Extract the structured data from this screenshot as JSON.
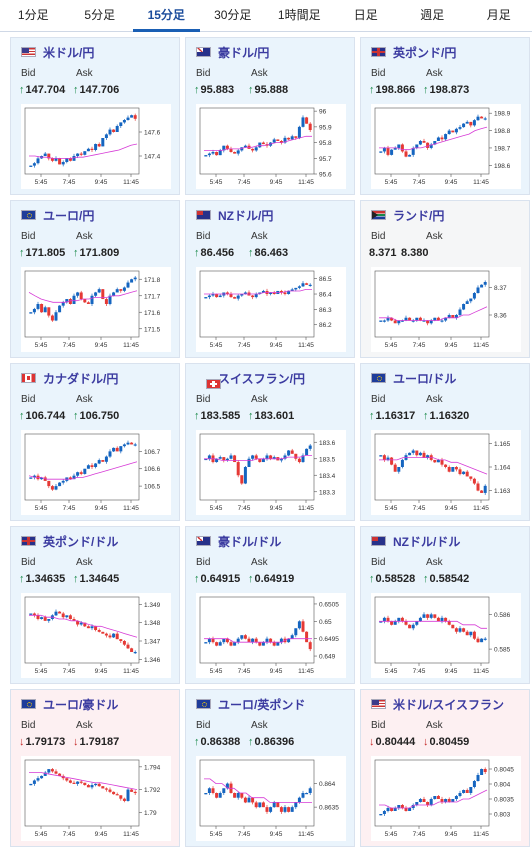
{
  "tabs": [
    "1分足",
    "5分足",
    "15分足",
    "30分足",
    "1時間足",
    "日足",
    "週足",
    "月足"
  ],
  "active_tab": 2,
  "bid_label": "Bid",
  "ask_label": "Ask",
  "time_labels": [
    "5:45",
    "7:45",
    "9:45",
    "11:45"
  ],
  "colors": {
    "up_arrow": "#1a8a4a",
    "down_arrow": "#c62828",
    "candle_up": "#1565c0",
    "candle_down": "#e53935",
    "moving_avg": "#d63ad6"
  },
  "cards": [
    {
      "name": "米ドル/円",
      "flag": "us",
      "bid": "147.704",
      "ask": "147.706",
      "dir": "up",
      "bg": "up",
      "ticks": [
        "147.6",
        "147.4"
      ],
      "min": 147.25,
      "max": 147.8,
      "close": [
        147.32,
        147.34,
        147.38,
        147.4,
        147.42,
        147.38,
        147.36,
        147.38,
        147.33,
        147.35,
        147.38,
        147.36,
        147.4,
        147.42,
        147.41,
        147.44,
        147.46,
        147.45,
        147.5,
        147.48,
        147.55,
        147.58,
        147.62,
        147.6,
        147.65,
        147.68,
        147.7,
        147.72,
        147.74,
        147.71
      ],
      "ma": [
        147.4,
        147.4,
        147.39,
        147.39,
        147.38,
        147.38,
        147.38,
        147.38,
        147.39,
        147.39,
        147.4,
        147.41,
        147.42,
        147.43,
        147.44,
        147.45,
        147.47,
        147.49,
        147.5
      ]
    },
    {
      "name": "豪ドル/円",
      "flag": "au",
      "bid": "95.883",
      "ask": "95.888",
      "dir": "up",
      "bg": "up",
      "ticks": [
        "96",
        "95.9",
        "95.8",
        "95.7",
        "95.6"
      ],
      "min": 95.6,
      "max": 96.02,
      "close": [
        95.72,
        95.73,
        95.74,
        95.72,
        95.75,
        95.78,
        95.76,
        95.74,
        95.73,
        95.75,
        95.77,
        95.78,
        95.76,
        95.75,
        95.77,
        95.8,
        95.79,
        95.78,
        95.8,
        95.82,
        95.81,
        95.8,
        95.83,
        95.82,
        95.84,
        95.83,
        95.9,
        95.96,
        95.92,
        95.88
      ],
      "ma": [
        95.75,
        95.75,
        95.75,
        95.75,
        95.76,
        95.76,
        95.76,
        95.77,
        95.77,
        95.78,
        95.78,
        95.79,
        95.8,
        95.8,
        95.81,
        95.82,
        95.83,
        95.84,
        95.84
      ]
    },
    {
      "name": "英ポンド/円",
      "flag": "gb",
      "bid": "198.866",
      "ask": "198.873",
      "dir": "up",
      "bg": "up",
      "ticks": [
        "198.9",
        "198.8",
        "198.7",
        "198.6"
      ],
      "min": 198.55,
      "max": 198.93,
      "close": [
        198.68,
        198.7,
        198.66,
        198.69,
        198.7,
        198.72,
        198.68,
        198.65,
        198.66,
        198.7,
        198.72,
        198.74,
        198.73,
        198.7,
        198.72,
        198.74,
        198.76,
        198.75,
        198.78,
        198.8,
        198.79,
        198.81,
        198.82,
        198.84,
        198.85,
        198.83,
        198.86,
        198.88,
        198.87,
        198.87
      ],
      "ma": [
        198.7,
        198.7,
        198.7,
        198.7,
        198.69,
        198.69,
        198.7,
        198.7,
        198.71,
        198.72,
        198.73,
        198.74,
        198.75,
        198.76,
        198.77,
        198.78,
        198.8,
        198.81,
        198.82
      ]
    },
    {
      "name": "ユーロ/円",
      "flag": "eu",
      "bid": "171.805",
      "ask": "171.809",
      "dir": "up",
      "bg": "up",
      "ticks": [
        "171.8",
        "171.7",
        "171.6",
        "171.5"
      ],
      "min": 171.45,
      "max": 171.85,
      "close": [
        171.6,
        171.62,
        171.65,
        171.6,
        171.63,
        171.58,
        171.55,
        171.6,
        171.64,
        171.66,
        171.68,
        171.65,
        171.7,
        171.72,
        171.68,
        171.66,
        171.65,
        171.7,
        171.72,
        171.74,
        171.68,
        171.65,
        171.7,
        171.72,
        171.74,
        171.73,
        171.75,
        171.78,
        171.8,
        171.81
      ],
      "ma": [
        171.72,
        171.7,
        171.68,
        171.67,
        171.66,
        171.66,
        171.66,
        171.67,
        171.67,
        171.68,
        171.68,
        171.69,
        171.69,
        171.69,
        171.7,
        171.7,
        171.71,
        171.72,
        171.73
      ]
    },
    {
      "name": "NZドル/円",
      "flag": "nz",
      "bid": "86.456",
      "ask": "86.463",
      "dir": "up",
      "bg": "up",
      "ticks": [
        "86.5",
        "86.4",
        "86.3",
        "86.2"
      ],
      "min": 86.12,
      "max": 86.55,
      "close": [
        86.38,
        86.39,
        86.4,
        86.38,
        86.39,
        86.41,
        86.4,
        86.38,
        86.37,
        86.39,
        86.4,
        86.41,
        86.39,
        86.38,
        86.4,
        86.41,
        86.42,
        86.4,
        86.41,
        86.4,
        86.42,
        86.41,
        86.4,
        86.42,
        86.43,
        86.44,
        86.45,
        86.47,
        86.46,
        86.46
      ],
      "ma": [
        86.4,
        86.4,
        86.4,
        86.4,
        86.4,
        86.4,
        86.4,
        86.4,
        86.4,
        86.4,
        86.41,
        86.41,
        86.41,
        86.41,
        86.42,
        86.42,
        86.42,
        86.43,
        86.43
      ]
    },
    {
      "name": "ランド/円",
      "flag": "za",
      "bid": "8.371",
      "ask": "8.380",
      "dir": "none",
      "bg": "neutral",
      "ticks": [
        "8.37",
        "8.36"
      ],
      "min": 8.352,
      "max": 8.376,
      "close": [
        8.358,
        8.358,
        8.359,
        8.358,
        8.357,
        8.358,
        8.358,
        8.359,
        8.358,
        8.358,
        8.359,
        8.358,
        8.358,
        8.357,
        8.358,
        8.359,
        8.358,
        8.358,
        8.359,
        8.36,
        8.359,
        8.36,
        8.362,
        8.364,
        8.365,
        8.366,
        8.368,
        8.37,
        8.371,
        8.372
      ],
      "ma": [
        8.359,
        8.359,
        8.359,
        8.358,
        8.358,
        8.358,
        8.358,
        8.358,
        8.358,
        8.358,
        8.358,
        8.359,
        8.359,
        8.359,
        8.36,
        8.36,
        8.361,
        8.362,
        8.363
      ]
    },
    {
      "name": "カナダドル/円",
      "flag": "ca",
      "bid": "106.744",
      "ask": "106.750",
      "dir": "up",
      "bg": "up",
      "ticks": [
        "106.7",
        "106.6",
        "106.5"
      ],
      "min": 106.42,
      "max": 106.8,
      "close": [
        106.55,
        106.56,
        106.54,
        106.55,
        106.53,
        106.5,
        106.48,
        106.5,
        106.52,
        106.53,
        106.55,
        106.54,
        106.56,
        106.58,
        106.57,
        106.6,
        106.62,
        106.61,
        106.63,
        106.65,
        106.64,
        106.67,
        106.7,
        106.72,
        106.7,
        106.73,
        106.74,
        106.75,
        106.74,
        106.74
      ],
      "ma": [
        106.56,
        106.55,
        106.55,
        106.54,
        106.54,
        106.54,
        106.54,
        106.54,
        106.55,
        106.55,
        106.56,
        106.57,
        106.58,
        106.59,
        106.6,
        106.61,
        106.62,
        106.63,
        106.64
      ]
    },
    {
      "name": "スイスフラン/円",
      "flag": "ch",
      "bid": "183.585",
      "ask": "183.601",
      "dir": "up",
      "bg": "up",
      "ticks": [
        "183.6",
        "183.5",
        "183.4",
        "183.3"
      ],
      "min": 183.25,
      "max": 183.65,
      "close": [
        183.5,
        183.52,
        183.48,
        183.5,
        183.51,
        183.49,
        183.5,
        183.52,
        183.48,
        183.4,
        183.35,
        183.45,
        183.5,
        183.52,
        183.5,
        183.48,
        183.5,
        183.52,
        183.5,
        183.51,
        183.49,
        183.5,
        183.52,
        183.55,
        183.53,
        183.5,
        183.48,
        183.52,
        183.56,
        183.58
      ],
      "ma": [
        183.5,
        183.5,
        183.5,
        183.49,
        183.49,
        183.49,
        183.49,
        183.49,
        183.49,
        183.5,
        183.5,
        183.5,
        183.5,
        183.5,
        183.51,
        183.51,
        183.51,
        183.52,
        183.52
      ]
    },
    {
      "name": "ユーロ/ドル",
      "flag": "eu",
      "bid": "1.16317",
      "ask": "1.16320",
      "dir": "up",
      "bg": "up",
      "ticks": [
        "1.165",
        "1.164",
        "1.163"
      ],
      "min": 1.1626,
      "max": 1.1654,
      "close": [
        1.1645,
        1.1643,
        1.1644,
        1.1641,
        1.1638,
        1.164,
        1.1643,
        1.1645,
        1.1646,
        1.1647,
        1.1645,
        1.1646,
        1.1644,
        1.1645,
        1.1643,
        1.1642,
        1.1643,
        1.1641,
        1.164,
        1.1638,
        1.164,
        1.1639,
        1.1637,
        1.1638,
        1.1636,
        1.1635,
        1.1633,
        1.163,
        1.1629,
        1.1632
      ],
      "ma": [
        1.1643,
        1.1643,
        1.1643,
        1.1643,
        1.1644,
        1.1644,
        1.1644,
        1.1644,
        1.1644,
        1.1644,
        1.1643,
        1.1643,
        1.1642,
        1.1642,
        1.1641,
        1.164,
        1.1639,
        1.1638,
        1.1637
      ]
    },
    {
      "name": "英ポンド/ドル",
      "flag": "gb",
      "bid": "1.34635",
      "ask": "1.34645",
      "dir": "up",
      "bg": "up",
      "ticks": [
        "1.349",
        "1.348",
        "1.347",
        "1.346"
      ],
      "min": 1.3458,
      "max": 1.3494,
      "close": [
        1.3485,
        1.3484,
        1.3482,
        1.3483,
        1.3481,
        1.3482,
        1.3484,
        1.3486,
        1.3485,
        1.3483,
        1.3484,
        1.3482,
        1.3481,
        1.3479,
        1.348,
        1.3478,
        1.3477,
        1.3478,
        1.3476,
        1.3475,
        1.3474,
        1.3473,
        1.3472,
        1.3474,
        1.3471,
        1.347,
        1.3468,
        1.3466,
        1.3464,
        1.3464
      ],
      "ma": [
        1.3484,
        1.3484,
        1.3484,
        1.3483,
        1.3483,
        1.3482,
        1.3482,
        1.3481,
        1.3481,
        1.348,
        1.3479,
        1.3478,
        1.3478,
        1.3477,
        1.3476,
        1.3475,
        1.3474,
        1.3473,
        1.3472
      ]
    },
    {
      "name": "豪ドル/ドル",
      "flag": "au",
      "bid": "0.64915",
      "ask": "0.64919",
      "dir": "up",
      "bg": "up",
      "ticks": [
        "0.6505",
        "0.65",
        "0.6495",
        "0.649"
      ],
      "min": 0.6488,
      "max": 0.6507,
      "close": [
        0.6494,
        0.6495,
        0.6494,
        0.6493,
        0.6494,
        0.6495,
        0.6494,
        0.6493,
        0.6494,
        0.6495,
        0.6496,
        0.6495,
        0.6494,
        0.6495,
        0.6494,
        0.6493,
        0.6494,
        0.6495,
        0.6494,
        0.6493,
        0.6494,
        0.6495,
        0.6494,
        0.6495,
        0.6496,
        0.6498,
        0.65,
        0.6497,
        0.6494,
        0.6492
      ],
      "ma": [
        0.6495,
        0.6495,
        0.6495,
        0.6495,
        0.6495,
        0.6494,
        0.6494,
        0.6494,
        0.6494,
        0.6494,
        0.6494,
        0.6494,
        0.6494,
        0.6494,
        0.6495,
        0.6495,
        0.6495,
        0.6495,
        0.6495
      ]
    },
    {
      "name": "NZドル/ドル",
      "flag": "nz",
      "bid": "0.58528",
      "ask": "0.58542",
      "dir": "up",
      "bg": "up",
      "ticks": [
        "0.586",
        "0.585"
      ],
      "min": 0.5846,
      "max": 0.5865,
      "close": [
        0.5858,
        0.5859,
        0.5858,
        0.5857,
        0.5858,
        0.5859,
        0.5858,
        0.5857,
        0.5856,
        0.5857,
        0.5858,
        0.5859,
        0.586,
        0.5859,
        0.586,
        0.5859,
        0.5858,
        0.5859,
        0.5858,
        0.5857,
        0.5856,
        0.5855,
        0.5856,
        0.5855,
        0.5854,
        0.5855,
        0.5853,
        0.5852,
        0.5853,
        0.5853
      ],
      "ma": [
        0.5858,
        0.5858,
        0.5858,
        0.5858,
        0.5858,
        0.5858,
        0.5858,
        0.5858,
        0.5858,
        0.5858,
        0.5858,
        0.5858,
        0.5858,
        0.5858,
        0.5857,
        0.5857,
        0.5857,
        0.5856,
        0.5856
      ]
    },
    {
      "name": "ユーロ/豪ドル",
      "flag": "eu",
      "bid": "1.79173",
      "ask": "1.79187",
      "dir": "down",
      "bg": "down",
      "ticks": [
        "1.794",
        "1.792",
        "1.79"
      ],
      "min": 1.7888,
      "max": 1.7946,
      "close": [
        1.7925,
        1.7928,
        1.793,
        1.7932,
        1.7935,
        1.7938,
        1.7936,
        1.7934,
        1.7932,
        1.793,
        1.7928,
        1.7926,
        1.7925,
        1.7927,
        1.7926,
        1.7924,
        1.7922,
        1.7924,
        1.7925,
        1.7923,
        1.7921,
        1.792,
        1.7918,
        1.7916,
        1.7915,
        1.7912,
        1.791,
        1.792,
        1.7918,
        1.7917
      ],
      "ma": [
        1.7935,
        1.7935,
        1.7935,
        1.7934,
        1.7933,
        1.7932,
        1.7931,
        1.793,
        1.7929,
        1.7928,
        1.7927,
        1.7926,
        1.7926,
        1.7925,
        1.7924,
        1.7923,
        1.7922,
        1.7921,
        1.792
      ]
    },
    {
      "name": "ユーロ/英ポンド",
      "flag": "eu",
      "bid": "0.86388",
      "ask": "0.86396",
      "dir": "up",
      "bg": "up",
      "ticks": [
        "0.864",
        "0.8635"
      ],
      "min": 0.8631,
      "max": 0.8645,
      "close": [
        0.8638,
        0.8639,
        0.8638,
        0.8637,
        0.8638,
        0.8639,
        0.864,
        0.8638,
        0.8637,
        0.8638,
        0.8637,
        0.8636,
        0.8637,
        0.8636,
        0.8635,
        0.8636,
        0.8635,
        0.8634,
        0.8635,
        0.8636,
        0.8635,
        0.8634,
        0.8635,
        0.8634,
        0.8635,
        0.8636,
        0.8637,
        0.8638,
        0.8638,
        0.8639
      ],
      "ma": [
        0.8641,
        0.8641,
        0.864,
        0.864,
        0.8639,
        0.8639,
        0.8638,
        0.8638,
        0.8637,
        0.8637,
        0.8637,
        0.8636,
        0.8636,
        0.8636,
        0.8636,
        0.8636,
        0.8636,
        0.8636,
        0.8636
      ]
    },
    {
      "name": "米ドル/スイスフラン",
      "flag": "us",
      "bid": "0.80444",
      "ask": "0.80459",
      "dir": "down",
      "bg": "down",
      "ticks": [
        "0.8045",
        "0.804",
        "0.8035",
        "0.803"
      ],
      "min": 0.8026,
      "max": 0.8048,
      "close": [
        0.803,
        0.8031,
        0.8032,
        0.8031,
        0.8032,
        0.8033,
        0.8032,
        0.8031,
        0.8032,
        0.8033,
        0.8034,
        0.8035,
        0.8034,
        0.8033,
        0.8035,
        0.8036,
        0.8035,
        0.8034,
        0.8035,
        0.8034,
        0.8035,
        0.8036,
        0.8037,
        0.8038,
        0.8037,
        0.8039,
        0.8041,
        0.8043,
        0.8045,
        0.8044
      ],
      "ma": [
        0.8033,
        0.8033,
        0.8032,
        0.8032,
        0.8032,
        0.8032,
        0.8033,
        0.8033,
        0.8033,
        0.8033,
        0.8034,
        0.8034,
        0.8034,
        0.8034,
        0.8035,
        0.8035,
        0.8036,
        0.8037,
        0.8038
      ]
    }
  ]
}
